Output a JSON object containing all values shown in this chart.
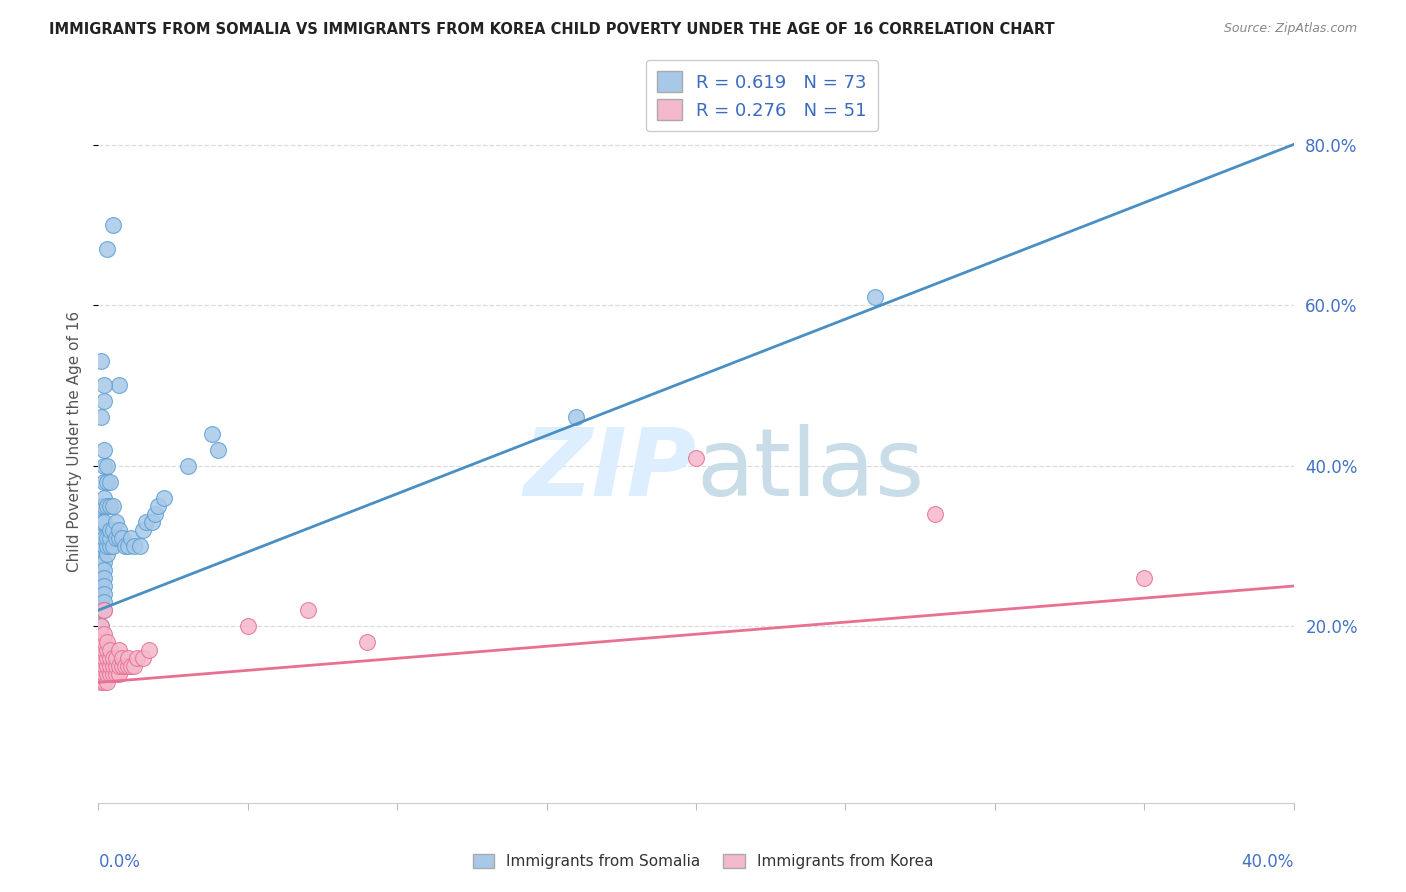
{
  "title": "IMMIGRANTS FROM SOMALIA VS IMMIGRANTS FROM KOREA CHILD POVERTY UNDER THE AGE OF 16 CORRELATION CHART",
  "source": "Source: ZipAtlas.com",
  "ylabel": "Child Poverty Under the Age of 16",
  "xlim": [
    0.0,
    0.4
  ],
  "ylim": [
    -0.02,
    0.88
  ],
  "ytick_values": [
    0.2,
    0.4,
    0.6,
    0.8
  ],
  "ytick_labels": [
    "20.0%",
    "40.0%",
    "60.0%",
    "80.0%"
  ],
  "xtick_values": [
    0.0,
    0.05,
    0.1,
    0.15,
    0.2,
    0.25,
    0.3,
    0.35,
    0.4
  ],
  "legend_somalia": "R = 0.619   N = 73",
  "legend_korea": "R = 0.276   N = 51",
  "somalia_color": "#a8c8e8",
  "korea_color": "#f4b8cc",
  "somalia_edge_color": "#5a9fd4",
  "korea_edge_color": "#e87090",
  "somalia_line_color": "#4a8fc4",
  "korea_line_color": "#e87090",
  "watermark_color": "#ddeeff",
  "background_color": "#ffffff",
  "grid_color": "#dddddd",
  "title_color": "#222222",
  "source_color": "#888888",
  "axis_label_color": "#4472c4",
  "ylabel_color": "#555555",
  "legend_text_color": "#3a6bbf",
  "somalia_scatter": [
    [
      0.001,
      0.28
    ],
    [
      0.001,
      0.3
    ],
    [
      0.001,
      0.32
    ],
    [
      0.001,
      0.27
    ],
    [
      0.001,
      0.26
    ],
    [
      0.001,
      0.35
    ],
    [
      0.001,
      0.33
    ],
    [
      0.001,
      0.25
    ],
    [
      0.001,
      0.24
    ],
    [
      0.001,
      0.23
    ],
    [
      0.001,
      0.22
    ],
    [
      0.001,
      0.2
    ],
    [
      0.001,
      0.19
    ],
    [
      0.001,
      0.18
    ],
    [
      0.001,
      0.17
    ],
    [
      0.001,
      0.16
    ],
    [
      0.002,
      0.3
    ],
    [
      0.002,
      0.28
    ],
    [
      0.002,
      0.27
    ],
    [
      0.002,
      0.26
    ],
    [
      0.002,
      0.25
    ],
    [
      0.002,
      0.24
    ],
    [
      0.002,
      0.23
    ],
    [
      0.002,
      0.22
    ],
    [
      0.002,
      0.31
    ],
    [
      0.002,
      0.33
    ],
    [
      0.002,
      0.35
    ],
    [
      0.002,
      0.36
    ],
    [
      0.002,
      0.38
    ],
    [
      0.002,
      0.4
    ],
    [
      0.002,
      0.42
    ],
    [
      0.003,
      0.29
    ],
    [
      0.003,
      0.3
    ],
    [
      0.003,
      0.31
    ],
    [
      0.003,
      0.35
    ],
    [
      0.003,
      0.38
    ],
    [
      0.003,
      0.4
    ],
    [
      0.004,
      0.3
    ],
    [
      0.004,
      0.31
    ],
    [
      0.004,
      0.32
    ],
    [
      0.004,
      0.35
    ],
    [
      0.004,
      0.38
    ],
    [
      0.005,
      0.3
    ],
    [
      0.005,
      0.32
    ],
    [
      0.005,
      0.35
    ],
    [
      0.006,
      0.31
    ],
    [
      0.006,
      0.33
    ],
    [
      0.007,
      0.31
    ],
    [
      0.007,
      0.32
    ],
    [
      0.008,
      0.31
    ],
    [
      0.009,
      0.3
    ],
    [
      0.01,
      0.3
    ],
    [
      0.011,
      0.31
    ],
    [
      0.012,
      0.3
    ],
    [
      0.014,
      0.3
    ],
    [
      0.015,
      0.32
    ],
    [
      0.016,
      0.33
    ],
    [
      0.018,
      0.33
    ],
    [
      0.019,
      0.34
    ],
    [
      0.02,
      0.35
    ],
    [
      0.022,
      0.36
    ],
    [
      0.03,
      0.4
    ],
    [
      0.04,
      0.42
    ],
    [
      0.038,
      0.44
    ],
    [
      0.007,
      0.5
    ],
    [
      0.16,
      0.46
    ],
    [
      0.26,
      0.61
    ],
    [
      0.005,
      0.7
    ],
    [
      0.003,
      0.67
    ],
    [
      0.001,
      0.53
    ],
    [
      0.001,
      0.46
    ],
    [
      0.002,
      0.48
    ],
    [
      0.002,
      0.5
    ]
  ],
  "korea_scatter": [
    [
      0.001,
      0.13
    ],
    [
      0.001,
      0.14
    ],
    [
      0.001,
      0.15
    ],
    [
      0.001,
      0.16
    ],
    [
      0.001,
      0.17
    ],
    [
      0.001,
      0.18
    ],
    [
      0.001,
      0.19
    ],
    [
      0.001,
      0.2
    ],
    [
      0.002,
      0.13
    ],
    [
      0.002,
      0.14
    ],
    [
      0.002,
      0.15
    ],
    [
      0.002,
      0.16
    ],
    [
      0.002,
      0.17
    ],
    [
      0.002,
      0.18
    ],
    [
      0.002,
      0.19
    ],
    [
      0.002,
      0.22
    ],
    [
      0.003,
      0.13
    ],
    [
      0.003,
      0.14
    ],
    [
      0.003,
      0.15
    ],
    [
      0.003,
      0.16
    ],
    [
      0.003,
      0.17
    ],
    [
      0.003,
      0.18
    ],
    [
      0.004,
      0.14
    ],
    [
      0.004,
      0.15
    ],
    [
      0.004,
      0.16
    ],
    [
      0.004,
      0.17
    ],
    [
      0.005,
      0.14
    ],
    [
      0.005,
      0.15
    ],
    [
      0.005,
      0.16
    ],
    [
      0.006,
      0.14
    ],
    [
      0.006,
      0.15
    ],
    [
      0.006,
      0.16
    ],
    [
      0.007,
      0.14
    ],
    [
      0.007,
      0.15
    ],
    [
      0.007,
      0.17
    ],
    [
      0.008,
      0.15
    ],
    [
      0.008,
      0.16
    ],
    [
      0.009,
      0.15
    ],
    [
      0.01,
      0.15
    ],
    [
      0.01,
      0.16
    ],
    [
      0.011,
      0.15
    ],
    [
      0.012,
      0.15
    ],
    [
      0.013,
      0.16
    ],
    [
      0.015,
      0.16
    ],
    [
      0.017,
      0.17
    ],
    [
      0.05,
      0.2
    ],
    [
      0.07,
      0.22
    ],
    [
      0.09,
      0.18
    ],
    [
      0.2,
      0.41
    ],
    [
      0.28,
      0.34
    ],
    [
      0.35,
      0.26
    ]
  ],
  "somalia_line_x": [
    0.0,
    0.4
  ],
  "somalia_line_y": [
    0.22,
    0.8
  ],
  "korea_line_x": [
    0.0,
    0.4
  ],
  "korea_line_y": [
    0.13,
    0.25
  ]
}
